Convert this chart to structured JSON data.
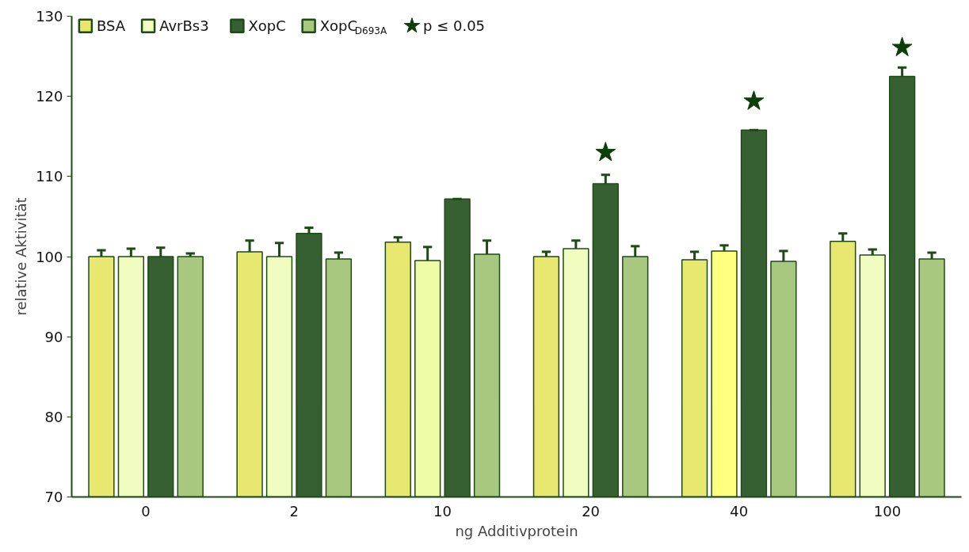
{
  "chart_data": {
    "type": "bar",
    "xlabel": "ng Additivprotein",
    "ylabel": "relative Aktivität",
    "categories": [
      "0",
      "2",
      "10",
      "20",
      "40",
      "100"
    ],
    "ylim": [
      70,
      130
    ],
    "yticks": [
      70,
      80,
      90,
      100,
      110,
      120,
      130
    ],
    "grid": false,
    "legend": "top left",
    "series": [
      {
        "name": "BSA",
        "color": "#e8e870",
        "values": [
          100,
          100.6,
          101.8,
          100.0,
          99.6,
          101.9
        ],
        "errors": [
          0.8,
          1.4,
          0.6,
          0.6,
          1.0,
          1.0
        ]
      },
      {
        "name": "AvrBs3",
        "color": "#f0fcc0",
        "colors": [
          "#f0fcc0",
          "#f0fcc0",
          "#eefca8",
          "#f0fcc0",
          "#ffff80",
          "#f0fcc0"
        ],
        "values": [
          100,
          100.0,
          99.5,
          101.0,
          100.7,
          100.2
        ],
        "errors": [
          1.0,
          1.7,
          1.7,
          1.0,
          0.7,
          0.7
        ]
      },
      {
        "name": "XopC",
        "color": "#376032",
        "values": [
          100,
          102.9,
          107.2,
          109.1,
          115.8,
          122.5
        ],
        "errors": [
          1.1,
          0.7,
          0,
          1.1,
          0,
          1.1
        ]
      },
      {
        "name": "XopC$_{D693A}$",
        "color": "#a8c880",
        "values": [
          100,
          99.7,
          100.3,
          100.0,
          99.4,
          99.7
        ],
        "errors": [
          0.4,
          0.8,
          1.7,
          1.3,
          1.3,
          0.8
        ]
      },
      {
        "name": "p ≤ 0.05",
        "type": "scatter",
        "marker": "star",
        "color": "#0a4008",
        "x": [
          "20",
          "40",
          "100"
        ],
        "values": [
          113.0,
          119.4,
          126.1
        ]
      }
    ]
  }
}
